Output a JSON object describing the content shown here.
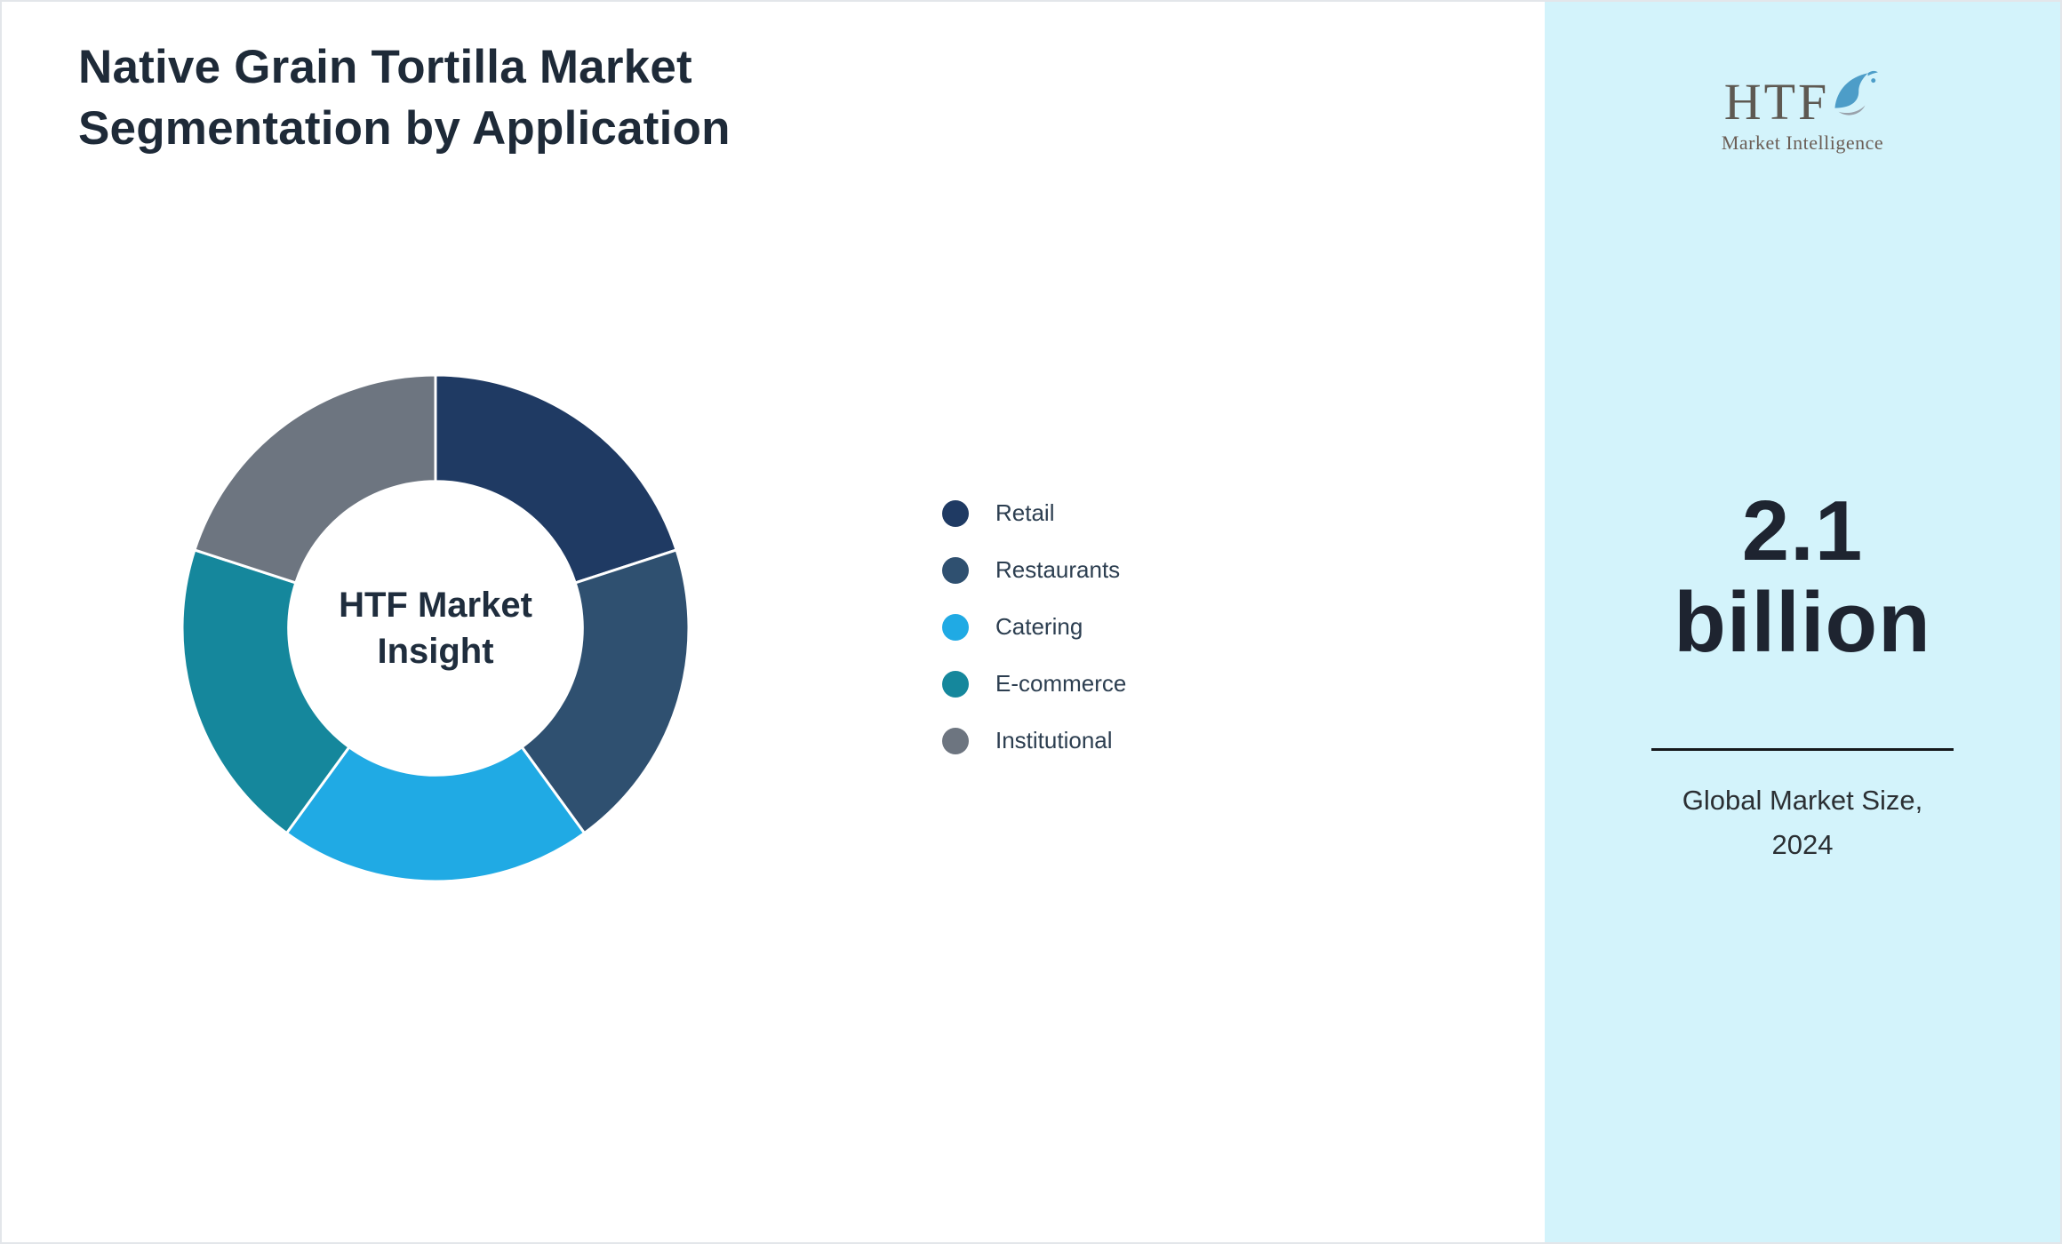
{
  "page": {
    "title_line1": "Native Grain Tortilla Market",
    "title_line2": "Segmentation by Application"
  },
  "chart_data": {
    "type": "pie",
    "subtype": "donut",
    "title": "Native Grain Tortilla Market Segmentation by Application",
    "center_label": "HTF Market Insight",
    "categories": [
      "Retail",
      "Restaurants",
      "Catering",
      "E-commerce",
      "Institutional"
    ],
    "values": [
      20,
      20,
      20,
      20,
      20
    ],
    "values_note": "estimated shares from equal segment angles; no numeric labels shown in chart",
    "colors": [
      "#1f3a63",
      "#2f5070",
      "#20aae4",
      "#15879c",
      "#6d7580"
    ],
    "legend_position": "right",
    "donut_hole_ratio": 0.58,
    "segment_gap_color": "#ffffff"
  },
  "sidebar": {
    "background_color": "#d3f3fb",
    "logo": {
      "text": "HTF",
      "subtext": "Market Intelligence",
      "icon": "dolphin-splash-icon"
    },
    "stat": {
      "value_line1": "2.1",
      "value_line2": "billion",
      "label_line1": "Global Market Size,",
      "label_line2": "2024"
    }
  }
}
